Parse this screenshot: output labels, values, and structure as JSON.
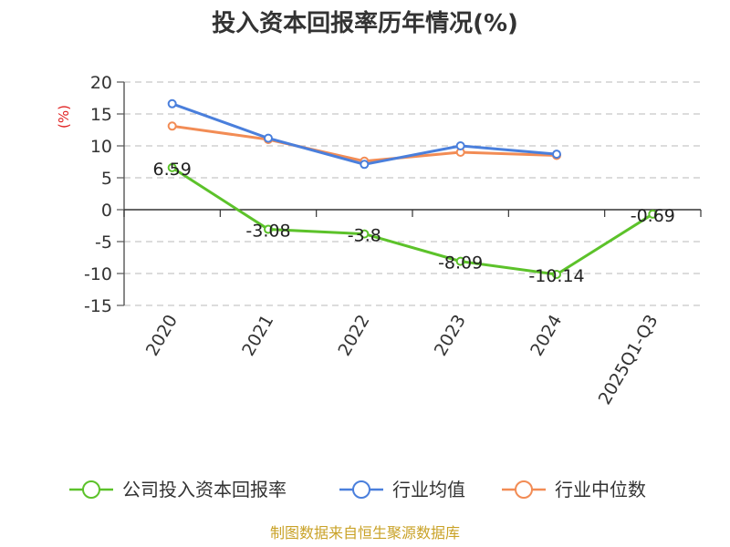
{
  "chart_data": {
    "type": "line",
    "title": "投入资本回报率历年情况(%)",
    "ylabel": "(%)",
    "xlabel": "",
    "categories": [
      "2020",
      "2021",
      "2022",
      "2023",
      "2024",
      "2025Q1-Q3"
    ],
    "ylim": [
      -15,
      20
    ],
    "yticks": [
      20,
      15,
      10,
      5,
      0,
      -5,
      -10,
      -15
    ],
    "grid": true,
    "legend_position": "bottom",
    "series": [
      {
        "name": "公司投入资本回报率",
        "color": "#5cc22a",
        "values": [
          6.59,
          -3.08,
          -3.8,
          -8.09,
          -10.14,
          -0.69
        ],
        "data_labels": [
          "6.59",
          "-3.08",
          "-3.8",
          "-8.09",
          "-10.14",
          "-0.69"
        ]
      },
      {
        "name": "行业均值",
        "color": "#4a7fdc",
        "values": [
          16.6,
          11.2,
          7.1,
          10.0,
          8.7,
          null
        ]
      },
      {
        "name": "行业中位数",
        "color": "#f28c55",
        "values": [
          13.1,
          11.0,
          7.6,
          9.0,
          8.5,
          null
        ]
      }
    ]
  },
  "source_text": "制图数据来自恒生聚源数据库"
}
